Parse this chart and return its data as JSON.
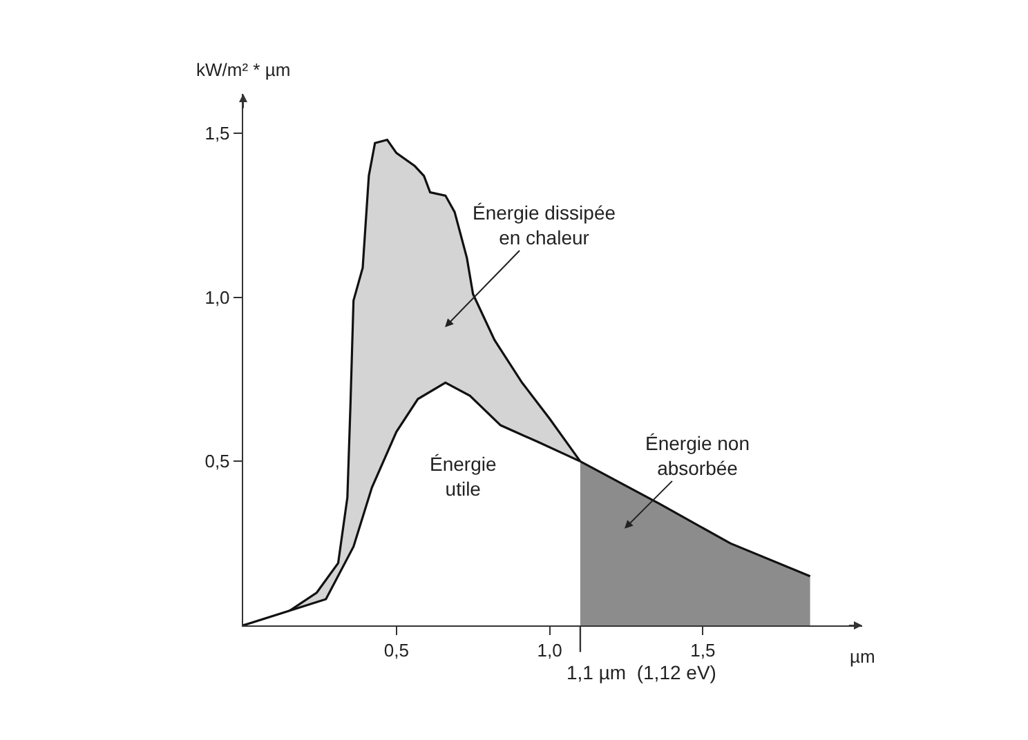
{
  "chart_data": {
    "type": "area",
    "xlabel": "µm",
    "ylabel": "kW/m² * µm",
    "xlim": [
      0,
      2.02
    ],
    "ylim": [
      0,
      1.62
    ],
    "xticks": [
      {
        "value": 0.5,
        "label": "0,5"
      },
      {
        "value": 1.0,
        "label": "1,0"
      },
      {
        "value": 1.5,
        "label": "1,5"
      }
    ],
    "yticks": [
      {
        "value": 0.5,
        "label": "0,5"
      },
      {
        "value": 1.0,
        "label": "1,0"
      },
      {
        "value": 1.5,
        "label": "1,5"
      }
    ],
    "series": [
      {
        "color": "#d4d4d4",
        "x": [
          0,
          0.12,
          0.24,
          0.31,
          0.34,
          0.35,
          0.36,
          0.39,
          0.41,
          0.43,
          0.47,
          0.5,
          0.56,
          0.59,
          0.61,
          0.66,
          0.69,
          0.73,
          0.75,
          0.82,
          0.91,
          1.0,
          1.1
        ],
        "values": [
          0,
          0.025,
          0.1,
          0.19,
          0.39,
          0.67,
          0.99,
          1.09,
          1.37,
          1.47,
          1.48,
          1.44,
          1.4,
          1.37,
          1.32,
          1.31,
          1.26,
          1.12,
          1.01,
          0.87,
          0.74,
          0.63,
          0.5
        ]
      },
      {
        "color": "#ffffff",
        "x": [
          0,
          0.27,
          0.36,
          0.42,
          0.5,
          0.57,
          0.66,
          0.74,
          0.84,
          0.96,
          1.1
        ],
        "values": [
          0,
          0.08,
          0.24,
          0.42,
          0.59,
          0.69,
          0.74,
          0.7,
          0.61,
          0.56,
          0.5
        ]
      },
      {
        "color": "#8c8c8c",
        "x": [
          1.1,
          1.36,
          1.59,
          1.85
        ],
        "values": [
          0.5,
          0.37,
          0.25,
          0.15
        ]
      }
    ],
    "ref_lines": [
      {
        "axis": "x",
        "value": 1.1,
        "label": "1,1 µm  (1,12 eV)"
      }
    ],
    "annotations": [
      "Énergie dissipée\nen chaleur",
      "Énergie\nutile",
      "Énergie non\nabsorbée"
    ]
  }
}
